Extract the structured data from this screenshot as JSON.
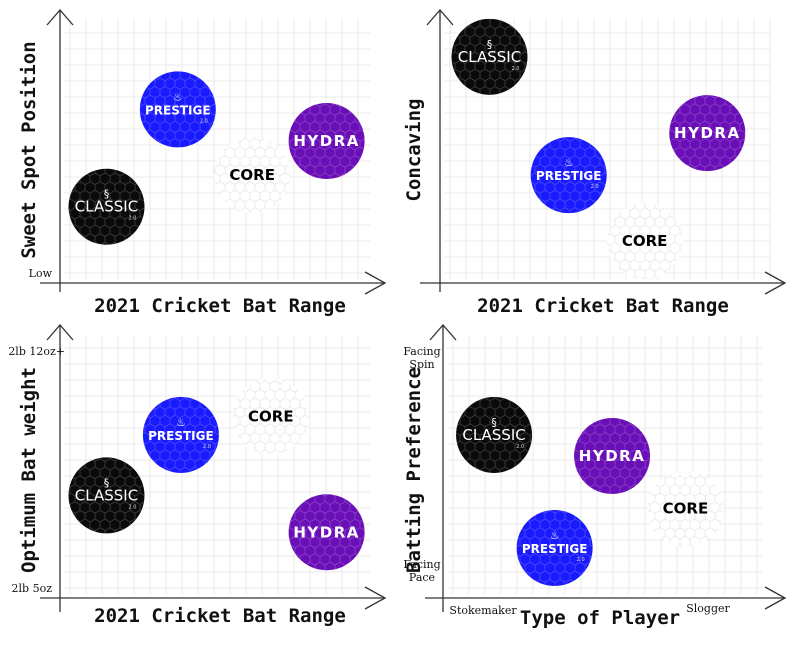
{
  "products": {
    "classic": {
      "name": "CLASSIC",
      "version": "2.0",
      "color": "#0a0a0a",
      "text_color": "#ffffff"
    },
    "prestige": {
      "name": "PRESTIGE",
      "version": "2.0",
      "color": "#1a1aff",
      "text_color": "#ffffff"
    },
    "hydra": {
      "name": "HYDRA",
      "version": "",
      "color": "#6a0fb8",
      "text_color": "#ffffff"
    },
    "core": {
      "name": "CORE",
      "version": "",
      "color": "#ffffff",
      "text_color": "#000000"
    }
  },
  "chart_data": [
    {
      "type": "scatter",
      "xlabel": "2021 Cricket Bat Range",
      "ylabel": "Sweet Spot Position",
      "y_tick_low": "Low",
      "y_tick_high": "",
      "x_tick_low": "",
      "x_tick_high": "",
      "grid": true,
      "points": [
        {
          "product": "prestige",
          "x": 3.8,
          "y": 6.6
        },
        {
          "product": "hydra",
          "x": 8.6,
          "y": 5.4
        },
        {
          "product": "core",
          "x": 6.2,
          "y": 4.1
        },
        {
          "product": "classic",
          "x": 1.5,
          "y": 2.9
        }
      ]
    },
    {
      "type": "scatter",
      "xlabel": "2021 Cricket Bat Range",
      "ylabel": "Concaving",
      "y_tick_low": "",
      "y_tick_high": "",
      "x_tick_low": "",
      "x_tick_high": "",
      "grid": true,
      "points": [
        {
          "product": "classic",
          "x": 1.5,
          "y": 8.6
        },
        {
          "product": "hydra",
          "x": 8.1,
          "y": 5.7
        },
        {
          "product": "prestige",
          "x": 3.9,
          "y": 4.1
        },
        {
          "product": "core",
          "x": 6.2,
          "y": 1.6
        }
      ]
    },
    {
      "type": "scatter",
      "xlabel": "2021 Cricket Bat Range",
      "ylabel": "Optimum Bat weight",
      "y_tick_low": "2lb 5oz",
      "y_tick_high": "2lb 12oz+",
      "x_tick_low": "",
      "x_tick_high": "",
      "grid": true,
      "points": [
        {
          "product": "core",
          "x": 6.8,
          "y": 6.9
        },
        {
          "product": "prestige",
          "x": 3.9,
          "y": 6.2
        },
        {
          "product": "classic",
          "x": 1.5,
          "y": 3.9
        },
        {
          "product": "hydra",
          "x": 8.6,
          "y": 2.5
        }
      ]
    },
    {
      "type": "scatter",
      "xlabel": "Type of Player",
      "ylabel": "Batting Preference",
      "y_tick_low": "Facing Pace",
      "y_tick_high": "Facing Spin",
      "x_tick_low": "Stokemaker",
      "x_tick_high": "Slogger",
      "grid": true,
      "points": [
        {
          "product": "classic",
          "x": 1.6,
          "y": 6.2
        },
        {
          "product": "hydra",
          "x": 5.3,
          "y": 5.4
        },
        {
          "product": "core",
          "x": 7.6,
          "y": 3.4
        },
        {
          "product": "prestige",
          "x": 3.5,
          "y": 1.9
        }
      ]
    }
  ]
}
